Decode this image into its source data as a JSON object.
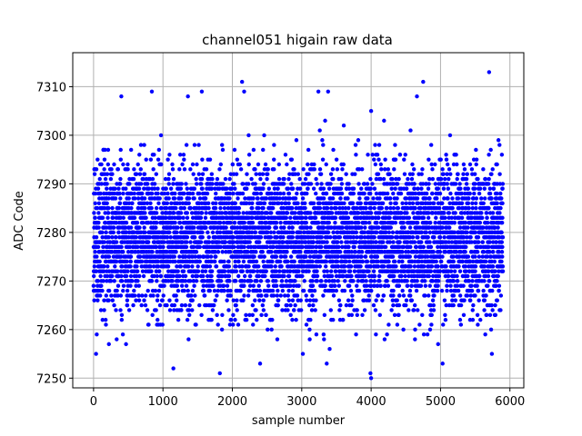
{
  "chart_data": {
    "type": "scatter",
    "title": "channel051 higain raw data",
    "xlabel": "sample number",
    "ylabel": "ADC Code",
    "xlim": [
      -300,
      6200
    ],
    "ylim": [
      7248,
      7317
    ],
    "xticks": [
      0,
      1000,
      2000,
      3000,
      4000,
      5000,
      6000
    ],
    "yticks": [
      7250,
      7260,
      7270,
      7280,
      7290,
      7300,
      7310
    ],
    "grid": true,
    "marker_color": "#0000ff",
    "series_summary": {
      "n_points": 5900,
      "x_range": [
        0,
        5899
      ],
      "center": 7279,
      "typical_band": [
        7265,
        7294
      ]
    },
    "outliers": [
      {
        "x": 400,
        "y": 7308
      },
      {
        "x": 840,
        "y": 7309
      },
      {
        "x": 1360,
        "y": 7308
      },
      {
        "x": 1560,
        "y": 7309
      },
      {
        "x": 2140,
        "y": 7311
      },
      {
        "x": 2170,
        "y": 7309
      },
      {
        "x": 3240,
        "y": 7309
      },
      {
        "x": 3380,
        "y": 7309
      },
      {
        "x": 4000,
        "y": 7305
      },
      {
        "x": 4660,
        "y": 7308
      },
      {
        "x": 4750,
        "y": 7311
      },
      {
        "x": 5700,
        "y": 7313
      },
      {
        "x": 1820,
        "y": 7251
      },
      {
        "x": 3360,
        "y": 7253
      },
      {
        "x": 4000,
        "y": 7250
      },
      {
        "x": 3990,
        "y": 7251
      },
      {
        "x": 1150,
        "y": 7252
      },
      {
        "x": 2400,
        "y": 7253
      },
      {
        "x": 5030,
        "y": 7253
      },
      {
        "x": 5740,
        "y": 7255
      }
    ]
  }
}
